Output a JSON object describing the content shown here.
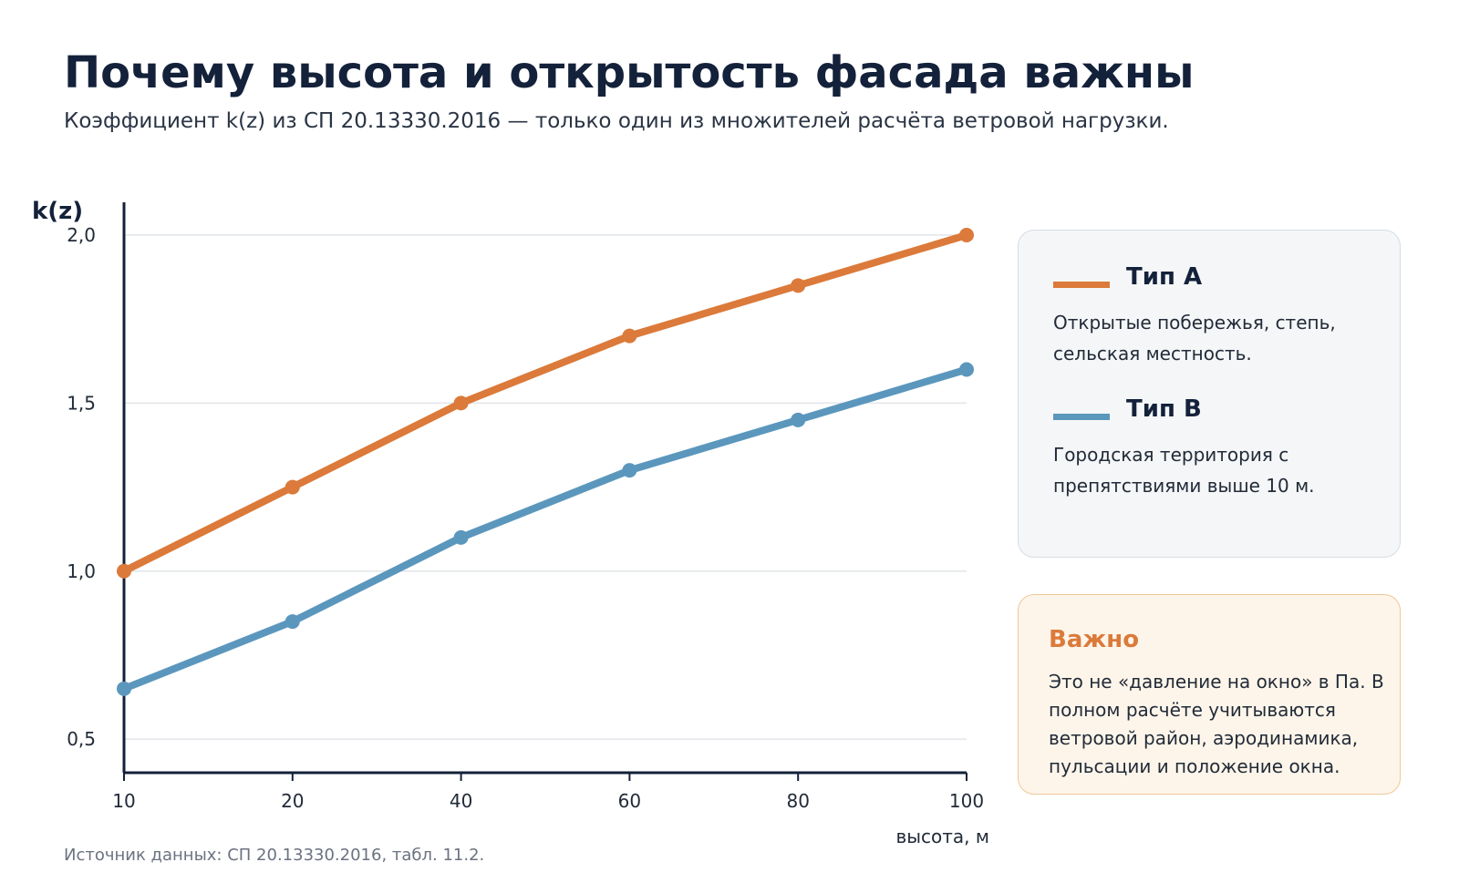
{
  "page": {
    "title": "Почему высота и открытость фасада важны",
    "subtitle": "Коэффициент k(z) из СП 20.13330.2016 — только один из множителей расчёта ветровой нагрузки.",
    "source": "Источник данных: СП 20.13330.2016, табл. 11.2."
  },
  "legend": {
    "items": [
      {
        "name": "Тип A",
        "description": "Открытые побережья, степь, сельская местность.",
        "color": "#db7a3a"
      },
      {
        "name": "Тип B",
        "description": "Городская территория с препятствиями выше 10 м.",
        "color": "#5b97bd"
      }
    ]
  },
  "note": {
    "title": "Важно",
    "text": "Это не «давление на окно» в Па. В полном расчёте учитываются ветровой район, аэродинамика, пульсации и положение окна."
  },
  "chart_data": {
    "type": "line",
    "x": [
      10,
      20,
      40,
      60,
      80,
      100
    ],
    "x_tick_labels": [
      "10",
      "20",
      "40",
      "60",
      "80",
      "100"
    ],
    "x_scale": "categorical-evenly-spaced",
    "xlabel": "высота, м",
    "ylabel": "k(z)",
    "ylim": [
      0.4,
      2.0
    ],
    "y_ticks": [
      0.5,
      1.0,
      1.5,
      2.0
    ],
    "y_tick_labels": [
      "0,5",
      "1,0",
      "1,5",
      "2,0"
    ],
    "grid": "horizontal",
    "legend_position": "right",
    "series": [
      {
        "name": "Тип A",
        "color": "#db7a3a",
        "values": [
          1.0,
          1.25,
          1.5,
          1.7,
          1.85,
          2.0
        ]
      },
      {
        "name": "Тип B",
        "color": "#5b97bd",
        "values": [
          0.65,
          0.85,
          1.1,
          1.3,
          1.45,
          1.6
        ]
      }
    ]
  }
}
